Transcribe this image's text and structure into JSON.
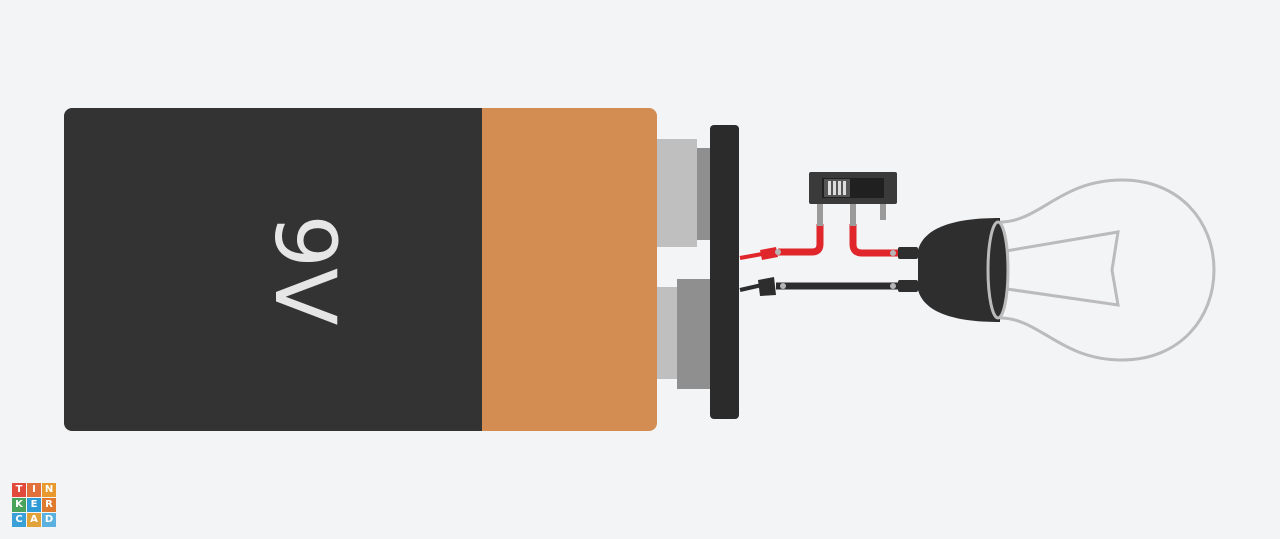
{
  "battery": {
    "label": "9V",
    "body_color": "#333333",
    "band_color": "#d38d52"
  },
  "wires": {
    "positive_color": "#e0262b",
    "negative_color": "#2d2d2d"
  },
  "switch": {
    "body_color": "#3a3a3a"
  },
  "bulb": {
    "base_color": "#2e2e2e",
    "glass_color": "#bbbbbb"
  },
  "logo": {
    "letters": [
      {
        "char": "T",
        "color": "#e24b3b"
      },
      {
        "char": "I",
        "color": "#e2703b"
      },
      {
        "char": "N",
        "color": "#e99a2f"
      },
      {
        "char": "K",
        "color": "#4aa35a"
      },
      {
        "char": "E",
        "color": "#2f9bd6"
      },
      {
        "char": "R",
        "color": "#e07a2f"
      },
      {
        "char": "C",
        "color": "#3aa0d8"
      },
      {
        "char": "A",
        "color": "#e2a23a"
      },
      {
        "char": "D",
        "color": "#5ab1e0"
      }
    ]
  }
}
